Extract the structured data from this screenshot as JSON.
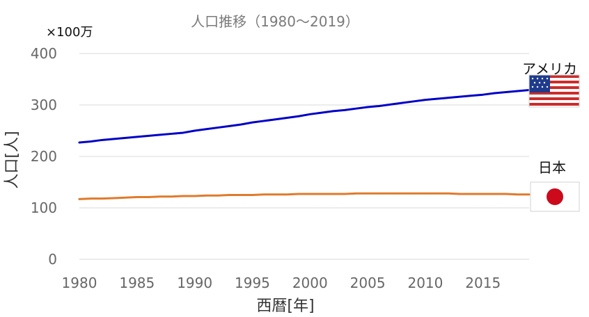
{
  "chart_data": {
    "type": "line",
    "title": "人口推移（1980～2019）",
    "unit_label": "×100万",
    "xlabel": "西暦[年]",
    "ylabel": "人口[人]",
    "xlim": [
      1980,
      2019
    ],
    "ylim": [
      0,
      400
    ],
    "x_ticks": [
      1980,
      1985,
      1990,
      1995,
      2000,
      2005,
      2010,
      2015
    ],
    "y_ticks": [
      0,
      100,
      200,
      300,
      400
    ],
    "grid": true,
    "legend_placement": "right",
    "series": [
      {
        "name": "アメリカ",
        "color": "#0000c8",
        "x": [
          1980,
          1981,
          1982,
          1983,
          1984,
          1985,
          1986,
          1987,
          1988,
          1989,
          1990,
          1991,
          1992,
          1993,
          1994,
          1995,
          1996,
          1997,
          1998,
          1999,
          2000,
          2001,
          2002,
          2003,
          2004,
          2005,
          2006,
          2007,
          2008,
          2009,
          2010,
          2011,
          2012,
          2013,
          2014,
          2015,
          2016,
          2017,
          2018,
          2019
        ],
        "y": [
          227,
          229,
          232,
          234,
          236,
          238,
          240,
          242,
          244,
          246,
          250,
          253,
          256,
          259,
          262,
          266,
          269,
          272,
          275,
          278,
          282,
          285,
          288,
          290,
          293,
          296,
          298,
          301,
          304,
          307,
          310,
          312,
          314,
          316,
          318,
          320,
          323,
          325,
          327,
          329
        ]
      },
      {
        "name": "日本",
        "color": "#e07a2a",
        "x": [
          1980,
          1981,
          1982,
          1983,
          1984,
          1985,
          1986,
          1987,
          1988,
          1989,
          1990,
          1991,
          1992,
          1993,
          1994,
          1995,
          1996,
          1997,
          1998,
          1999,
          2000,
          2001,
          2002,
          2003,
          2004,
          2005,
          2006,
          2007,
          2008,
          2009,
          2010,
          2011,
          2012,
          2013,
          2014,
          2015,
          2016,
          2017,
          2018,
          2019
        ],
        "y": [
          117,
          118,
          118,
          119,
          120,
          121,
          121,
          122,
          122,
          123,
          123,
          124,
          124,
          125,
          125,
          125,
          126,
          126,
          126,
          127,
          127,
          127,
          127,
          127,
          128,
          128,
          128,
          128,
          128,
          128,
          128,
          128,
          128,
          127,
          127,
          127,
          127,
          127,
          126,
          126
        ]
      }
    ]
  },
  "flags": {
    "usa": "usa-flag-icon",
    "japan": "japan-flag-icon"
  }
}
